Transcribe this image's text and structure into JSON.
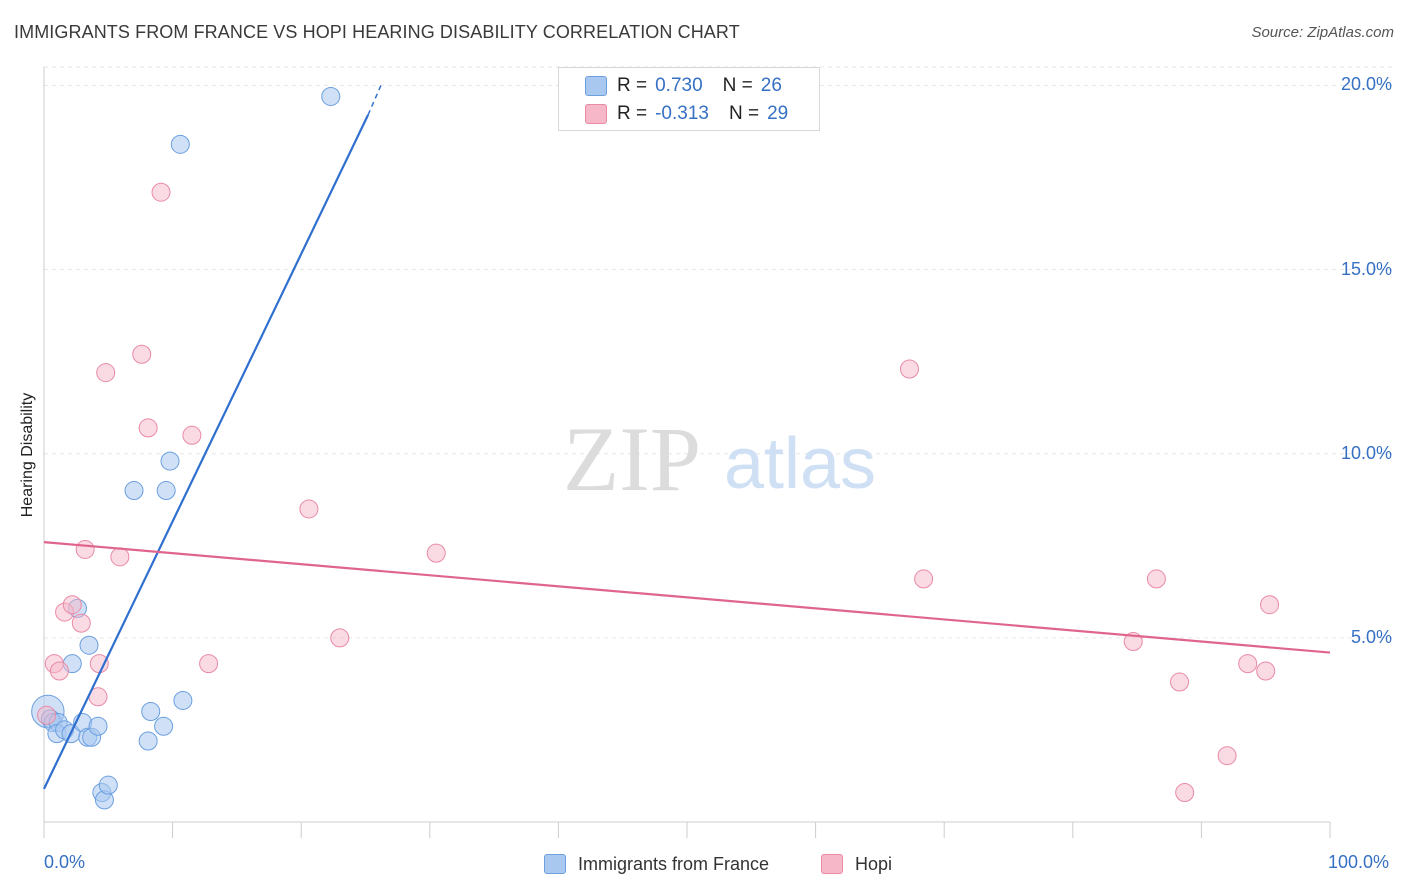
{
  "header": {
    "title": "IMMIGRANTS FROM FRANCE VS HOPI HEARING DISABILITY CORRELATION CHART",
    "source": "Source: ZipAtlas.com"
  },
  "watermark": {
    "zip": "ZIP",
    "atlas": "atlas"
  },
  "legend_top": {
    "rows": [
      {
        "r_label": "R =",
        "r_value": "0.730",
        "n_label": "N =",
        "n_value": "26",
        "color": "#a9c8f0"
      },
      {
        "r_label": "R =",
        "r_value": "-0.313",
        "n_label": "N =",
        "n_value": "29",
        "color": "#f6b8c9"
      }
    ]
  },
  "legend_bottom": {
    "items": [
      {
        "label": "Immigrants from France",
        "color": "#a9c8f0"
      },
      {
        "label": "Hopi",
        "color": "#f6b8c9"
      }
    ]
  },
  "colors": {
    "blue_fill": "#a9c8f0",
    "blue_stroke": "#6b9fe0",
    "blue_line": "#2f6fcf",
    "pink_fill": "#f6b8c9",
    "pink_stroke": "#e98aa6",
    "pink_line": "#e0658c",
    "grid": "#e6e6e6",
    "tick": "#3570c4"
  },
  "chart_data": {
    "type": "scatter",
    "title": "IMMIGRANTS FROM FRANCE VS HOPI HEARING DISABILITY CORRELATION CHART",
    "xlabel": "",
    "ylabel": "Hearing Disability",
    "xlim": [
      0,
      100
    ],
    "ylim": [
      0,
      20.5
    ],
    "y_ticks": [
      5,
      10,
      15,
      20
    ],
    "y_tick_labels": [
      "5.0%",
      "10.0%",
      "15.0%",
      "20.0%"
    ],
    "x_tick_labels": {
      "min": "0.0%",
      "max": "100.0%"
    },
    "series": [
      {
        "name": "Immigrants from France",
        "r": 0.73,
        "n": 26,
        "points": [
          [
            0.3,
            3.0,
            1.8
          ],
          [
            0.5,
            2.8,
            1
          ],
          [
            0.7,
            2.7,
            1
          ],
          [
            1.1,
            2.7,
            1
          ],
          [
            1.0,
            2.4,
            1
          ],
          [
            1.6,
            2.5,
            1
          ],
          [
            2.1,
            2.4,
            1
          ],
          [
            2.2,
            4.3,
            1
          ],
          [
            2.6,
            5.8,
            1
          ],
          [
            3.0,
            2.7,
            1
          ],
          [
            3.4,
            2.3,
            1
          ],
          [
            3.5,
            4.8,
            1
          ],
          [
            3.7,
            2.3,
            1
          ],
          [
            4.2,
            2.6,
            1
          ],
          [
            4.5,
            0.8,
            1
          ],
          [
            4.7,
            0.6,
            1
          ],
          [
            5.0,
            1.0,
            1
          ],
          [
            7.0,
            9.0,
            1
          ],
          [
            8.1,
            2.2,
            1
          ],
          [
            8.3,
            3.0,
            1
          ],
          [
            9.3,
            2.6,
            1
          ],
          [
            9.5,
            9.0,
            1
          ],
          [
            9.8,
            9.8,
            1
          ],
          [
            10.8,
            3.3,
            1
          ],
          [
            10.6,
            18.4,
            1
          ],
          [
            22.3,
            19.7,
            1
          ]
        ],
        "trend": {
          "x1": 0,
          "y1": 0.9,
          "x2": 25.2,
          "y2": 19.2,
          "dash_x2": 26.2,
          "dash_y2": 20.0
        }
      },
      {
        "name": "Hopi",
        "r": -0.313,
        "n": 29,
        "points": [
          [
            0.2,
            2.9
          ],
          [
            0.8,
            4.3
          ],
          [
            1.2,
            4.1
          ],
          [
            1.6,
            5.7
          ],
          [
            2.2,
            5.9
          ],
          [
            2.9,
            5.4
          ],
          [
            3.2,
            7.4
          ],
          [
            4.3,
            4.3
          ],
          [
            4.2,
            3.4
          ],
          [
            4.8,
            12.2
          ],
          [
            5.9,
            7.2
          ],
          [
            7.6,
            12.7
          ],
          [
            8.1,
            10.7
          ],
          [
            9.1,
            17.1
          ],
          [
            11.5,
            10.5
          ],
          [
            12.8,
            4.3
          ],
          [
            20.6,
            8.5
          ],
          [
            23.0,
            5.0
          ],
          [
            30.5,
            7.3
          ],
          [
            67.3,
            12.3
          ],
          [
            68.4,
            6.6
          ],
          [
            84.7,
            4.9
          ],
          [
            86.5,
            6.6
          ],
          [
            88.3,
            3.8
          ],
          [
            88.7,
            0.8
          ],
          [
            92.0,
            1.8
          ],
          [
            93.6,
            4.3
          ],
          [
            95.0,
            4.1
          ],
          [
            95.3,
            5.9
          ]
        ],
        "trend": {
          "x1": 0,
          "y1": 7.6,
          "x2": 100,
          "y2": 4.6
        }
      }
    ]
  }
}
